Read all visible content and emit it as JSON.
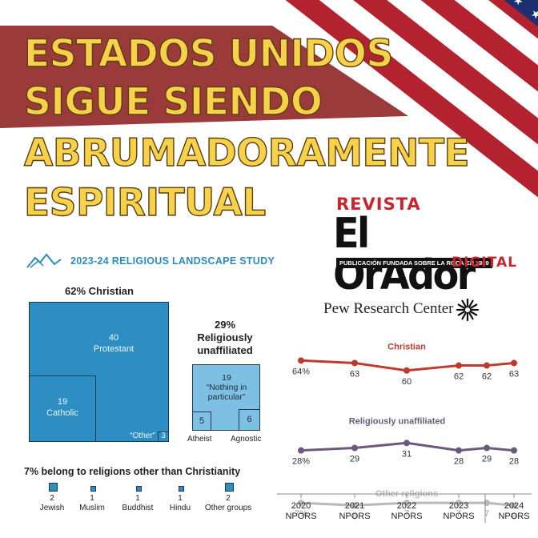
{
  "headline": {
    "line1": "ESTADOS UNIDOS",
    "line2": "SIGUE SIENDO",
    "line3": "ABRUMADORAMENTE",
    "line4": "ESPIRITUAL"
  },
  "logo": {
    "revista": "REVISTA",
    "name": "El OrAdor",
    "tagline": "PUBLICACIÓN FUNDADA SOBRE LA ROCA EN 1989",
    "digital": "DIGITAL"
  },
  "study_title": "2023-24 RELIGIOUS LANDSCAPE STUDY",
  "pew": "Pew Research Center",
  "colors": {
    "accent_blue": "#2a8bbf",
    "box_blue": "#2d8ec4",
    "light_blue": "#7ec0e4",
    "banner_red": "#9b3a3a",
    "christian_red": "#c0392b",
    "unaffiliated_purple": "#6b5a7e",
    "other_gray": "#b9b9b9",
    "headline_yellow": "#f7d14a"
  },
  "chart_data": [
    {
      "type": "treemap",
      "title": "62% Christian",
      "items": [
        {
          "label": "Protestant",
          "value": 40
        },
        {
          "label": "Catholic",
          "value": 19
        },
        {
          "label": "“Other”",
          "value": 3
        }
      ]
    },
    {
      "type": "treemap",
      "title": "29% Religiously unaffiliated",
      "title_pct": "29%",
      "title_rest": "Religiously unaffiliated",
      "items": [
        {
          "label": "“Nothing in particular”",
          "value": 19
        },
        {
          "label": "Atheist",
          "value": 5
        },
        {
          "label": "Agnostic",
          "value": 6
        }
      ]
    },
    {
      "type": "bar",
      "title": "7% belong to religions other than Christianity",
      "categories": [
        "Jewish",
        "Muslim",
        "Buddhist",
        "Hindu",
        "Other groups"
      ],
      "values": [
        2,
        1,
        1,
        1,
        2
      ]
    },
    {
      "type": "line",
      "x": [
        "2020",
        "2021",
        "2022",
        "2023",
        "2023.5",
        "2024"
      ],
      "x_tick_labels": [
        {
          "year": "2020",
          "sub": "NPORS"
        },
        {
          "year": "2021",
          "sub": "NPORS"
        },
        {
          "year": "2022",
          "sub": "NPORS"
        },
        {
          "year": "2023",
          "sub": "NPORS"
        },
        {
          "year": "2024",
          "sub": "NPORS"
        }
      ],
      "series": [
        {
          "name": "Christian",
          "values": [
            64,
            63,
            60,
            62,
            62,
            63
          ],
          "labels": [
            "64%",
            "63",
            "60",
            "62",
            "62",
            "63"
          ]
        },
        {
          "name": "Religiously unaffiliated",
          "values": [
            28,
            29,
            31,
            28,
            29,
            28
          ],
          "labels": [
            "28%",
            "29",
            "31",
            "28",
            "29",
            "28"
          ]
        },
        {
          "name": "Other religions",
          "values": [
            7,
            6,
            7,
            7,
            7,
            6
          ],
          "labels": [
            "7%",
            "6",
            "7",
            "7",
            "7",
            "6"
          ]
        }
      ]
    }
  ]
}
